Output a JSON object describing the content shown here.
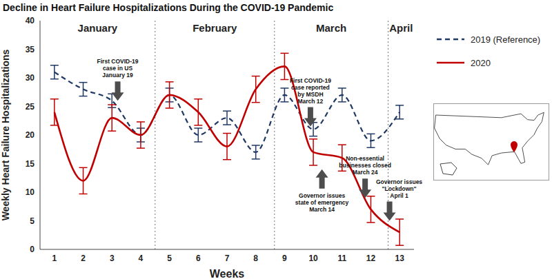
{
  "chart_data": {
    "type": "line",
    "title": "Decline in Heart Failure Hospitalizations During the COVID-19 Pandemic",
    "x_label": "Weeks",
    "y_label": "Weekly Heart Failure Hospitalizations",
    "x": [
      1,
      2,
      3,
      4,
      5,
      6,
      7,
      8,
      9,
      10,
      11,
      12,
      13
    ],
    "xlim": [
      0.5,
      13.5
    ],
    "xticks": [
      1,
      2,
      3,
      4,
      5,
      6,
      7,
      8,
      9,
      10,
      11,
      12,
      13
    ],
    "ylim": [
      0,
      40
    ],
    "yticks": [
      0,
      5,
      10,
      15,
      20,
      25,
      30,
      35,
      40
    ],
    "grid": false,
    "legend": "upper right",
    "series": [
      {
        "name": "2019 (Reference)",
        "color": "#1f3864",
        "line_style": "dashed",
        "values": [
          31,
          28,
          26,
          20,
          27,
          20,
          23,
          17,
          27,
          21,
          27,
          19,
          24
        ],
        "error": [
          1.2,
          1.2,
          1.2,
          1.2,
          1.2,
          1.2,
          1.2,
          1.2,
          1.2,
          1.2,
          1.2,
          1.2,
          1.2
        ]
      },
      {
        "name": "2020",
        "color": "#c00000",
        "line_style": "solid",
        "values": [
          24,
          12,
          23,
          20,
          27,
          24,
          18,
          28,
          32,
          17,
          16,
          7,
          3
        ],
        "error": [
          2.3,
          2.3,
          2.3,
          2.3,
          2.3,
          2.3,
          2.3,
          2.3,
          2.3,
          2.3,
          2.3,
          2.3,
          2.3
        ]
      }
    ],
    "months": [
      "January",
      "February",
      "March",
      "April"
    ],
    "month_boundaries": [
      4.5,
      8.65,
      12.6
    ],
    "annotations": [
      {
        "lines": [
          "First COVID-19",
          "case in US",
          "January 19"
        ],
        "x": 3.2
      },
      {
        "lines": [
          "First COVID-19",
          "case reported",
          "by MSDH",
          "March 12"
        ],
        "x": 9.9
      },
      {
        "lines": [
          "Governor issues",
          "state of emergency",
          "March 14"
        ],
        "x": 10.3
      },
      {
        "lines": [
          "Non-essential",
          "businesses closed",
          "March 24"
        ],
        "x": 11.8
      },
      {
        "lines": [
          "Governor issues",
          "\"Lockdown\"",
          "April 1"
        ],
        "x": 12.65
      }
    ]
  }
}
